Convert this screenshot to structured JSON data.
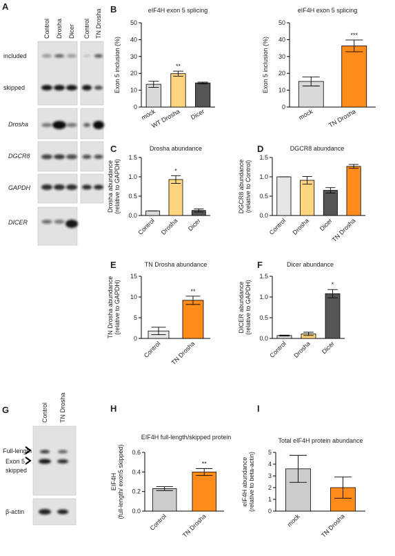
{
  "chart_data": [
    {
      "type": "bar",
      "panel": "B",
      "title": "eIF4H exon 5 splicing",
      "ylabel": [
        "Exon 5 inclusion (%)"
      ],
      "categories": [
        "mock",
        "WT Drosha",
        "Dicer"
      ],
      "values": [
        13.5,
        19.8,
        14.3
      ],
      "errors": [
        1.8,
        1.5,
        0.5
      ],
      "colors": [
        "#d9d9d9",
        "#fdd57e",
        "#555555"
      ],
      "significance": [
        null,
        "**",
        null
      ],
      "ylim": [
        0,
        50
      ],
      "yticks": [
        0,
        10,
        20,
        30,
        40,
        50
      ]
    },
    {
      "type": "bar",
      "title": "eIF4H exon 5 splicing",
      "ylabel": [
        "Exon 5 inclusion (%)"
      ],
      "categories": [
        "mock",
        "TN Drosha"
      ],
      "values": [
        15.2,
        36.3
      ],
      "errors": [
        2.7,
        3.5
      ],
      "colors": [
        "#d9d9d9",
        "#ff8c1a"
      ],
      "significance": [
        null,
        "***"
      ],
      "ylim": [
        0,
        50
      ],
      "yticks": [
        0,
        10,
        20,
        30,
        40,
        50
      ]
    },
    {
      "type": "bar",
      "panel": "C",
      "title": "Drosha abundance",
      "ylabel": [
        "Drosha abundance",
        "(relative to GAPDH)"
      ],
      "categories": [
        "Control",
        "Drosha",
        "Dicer"
      ],
      "values": [
        0.12,
        0.93,
        0.13
      ],
      "errors": [
        0,
        0.1,
        0.04
      ],
      "colors": [
        "#d9d9d9",
        "#fdd57e",
        "#555555"
      ],
      "significance": [
        null,
        "*",
        null
      ],
      "ylim": [
        0,
        1.5
      ],
      "yticks": [
        {
          "value": 0,
          "label": "0.0"
        },
        0.5,
        {
          "value": 1,
          "label": "1.0"
        },
        1.5
      ]
    },
    {
      "type": "bar",
      "panel": "D",
      "title": "DGCR8 abundance",
      "ylabel": [
        "DGCR8 abundance",
        "(relative to Control)"
      ],
      "categories": [
        "Control",
        "Drosha",
        "Dicer",
        "TN Drosha"
      ],
      "values": [
        1.0,
        0.91,
        0.65,
        1.27
      ],
      "errors": [
        0,
        0.1,
        0.07,
        0.05
      ],
      "colors": [
        "#e6e6e6",
        "#fdd57e",
        "#555555",
        "#ff8c1a"
      ],
      "significance": [
        null,
        null,
        null,
        null
      ],
      "ylim": [
        0,
        1.5
      ],
      "yticks": [
        {
          "value": 0,
          "label": "0.0"
        },
        0.5,
        {
          "value": 1,
          "label": "1.0"
        },
        1.5
      ]
    },
    {
      "type": "bar",
      "panel": "E",
      "title": "TN Drosha abundance",
      "ylabel": [
        "TN Drosha abundance",
        "(relative to GAPDH)"
      ],
      "categories": [
        "Control",
        "TN Drosha"
      ],
      "values": [
        1.8,
        9.2
      ],
      "errors": [
        0.9,
        1.0
      ],
      "colors": [
        "#e6e6e6",
        "#ff8c1a"
      ],
      "significance": [
        null,
        "**"
      ],
      "ylim": [
        0,
        15
      ],
      "yticks": [
        0,
        5,
        10,
        15
      ]
    },
    {
      "type": "bar",
      "panel": "F",
      "title": "Dicer abundance",
      "ylabel": [
        "DICER abundance",
        "(relative to GAPDH)"
      ],
      "categories": [
        "Control",
        "Drosha",
        "Dicer"
      ],
      "values": [
        0.07,
        0.11,
        1.08
      ],
      "errors": [
        0.01,
        0.04,
        0.1
      ],
      "colors": [
        "#d9d9d9",
        "#fdd57e",
        "#555555"
      ],
      "significance": [
        null,
        null,
        "*"
      ],
      "ylim": [
        0,
        1.5
      ],
      "yticks": [
        {
          "value": 0,
          "label": "0.0"
        },
        0.5,
        {
          "value": 1,
          "label": "1.0"
        },
        1.5
      ]
    },
    {
      "type": "bar",
      "panel": "H",
      "title": "EIF4H full-length/skipped protein",
      "ylabel": [
        "EIF4H",
        "(full-length/ exon5 skipped)"
      ],
      "categories": [
        "Control",
        "TN Drosha"
      ],
      "values": [
        0.23,
        0.4
      ],
      "errors": [
        0.02,
        0.035
      ],
      "colors": [
        "#cccccc",
        "#ff8c1a"
      ],
      "significance": [
        null,
        "**"
      ],
      "ylim": [
        0,
        0.6
      ],
      "yticks": [
        {
          "value": 0,
          "label": "0.0"
        },
        0.2,
        0.4,
        0.6
      ]
    },
    {
      "type": "bar",
      "panel": "I",
      "title": "Total eIF4H protein abundance",
      "ylabel": [
        "eIF4H abundance",
        "(relative to beta-actin)"
      ],
      "categories": [
        "mock",
        "TN Drosha"
      ],
      "values": [
        3.6,
        2.0
      ],
      "errors": [
        1.15,
        0.9
      ],
      "colors": [
        "#cccccc",
        "#ff8c1a"
      ],
      "significance": [
        null,
        null
      ],
      "ylim": [
        0,
        5
      ],
      "yticks": [
        0,
        1,
        2,
        3,
        4,
        5
      ]
    }
  ],
  "blot_a": {
    "panel": "A",
    "lanes_left": [
      "Control",
      "Drosha",
      "Dicer"
    ],
    "lanes_right": [
      "Control",
      "TN Drosha"
    ],
    "rows": [
      "included",
      "skipped",
      "Drosha",
      "DGCR8",
      "GAPDH",
      "DICER"
    ]
  },
  "blot_g": {
    "panel": "G",
    "lanes": [
      "Control",
      "TN Drosha"
    ],
    "bands": [
      "Full-length",
      "Exon 5",
      "skipped"
    ],
    "loading": "β-actin"
  }
}
